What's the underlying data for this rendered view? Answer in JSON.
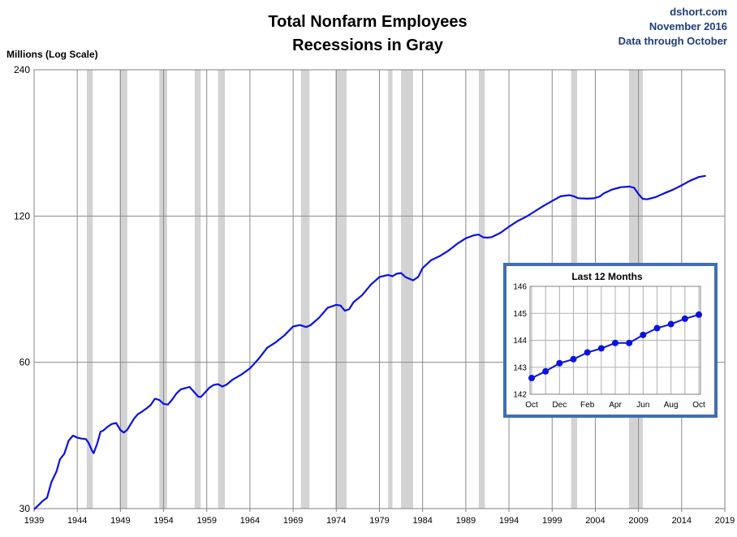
{
  "header": {
    "title_line1": "Total Nonfarm Employees",
    "title_line2": "Recessions in Gray",
    "source": "dshort.com",
    "date": "November 2016",
    "coverage": "Data through October"
  },
  "chart_data": [
    {
      "type": "line",
      "ylabel": "Millions (Log Scale)",
      "y_scale": "log",
      "ylim": [
        30,
        240
      ],
      "yticks": [
        "240",
        "120",
        "60",
        "30"
      ],
      "xlim": [
        1939,
        2019
      ],
      "xticks": [
        "1939",
        "1944",
        "1949",
        "1954",
        "1959",
        "1964",
        "1969",
        "1974",
        "1979",
        "1984",
        "1989",
        "1994",
        "1999",
        "2004",
        "2009",
        "2014",
        "2019"
      ],
      "grid": true,
      "line_color": "#0a12e0",
      "recession_color": "#d3d3d3",
      "recessions": [
        [
          1945.1,
          1945.8
        ],
        [
          1948.9,
          1949.8
        ],
        [
          1953.5,
          1954.4
        ],
        [
          1957.6,
          1958.3
        ],
        [
          1960.3,
          1961.1
        ],
        [
          1969.9,
          1970.9
        ],
        [
          1973.9,
          1975.2
        ],
        [
          1980.0,
          1980.5
        ],
        [
          1981.5,
          1982.9
        ],
        [
          1990.5,
          1991.2
        ],
        [
          2001.2,
          2001.9
        ],
        [
          2007.9,
          2009.5
        ]
      ],
      "series": [
        {
          "x": [
            1939.0,
            1939.6,
            1940.0,
            1940.5,
            1941.0,
            1941.6,
            1942.0,
            1942.5,
            1943.0,
            1943.5,
            1944.0,
            1944.5,
            1945.0,
            1945.3,
            1945.7,
            1945.9,
            1946.3,
            1946.7,
            1947.0,
            1947.5,
            1948.0,
            1948.5,
            1949.0,
            1949.4,
            1949.8,
            1950.2,
            1950.6,
            1951.0,
            1951.5,
            1952.0,
            1952.5,
            1953.0,
            1953.5,
            1954.0,
            1954.5,
            1955.0,
            1955.5,
            1956.0,
            1956.5,
            1957.0,
            1957.5,
            1958.0,
            1958.3,
            1958.8,
            1959.3,
            1959.8,
            1960.3,
            1960.8,
            1961.3,
            1962.0,
            1963.0,
            1964.0,
            1965.0,
            1966.0,
            1967.0,
            1968.0,
            1969.0,
            1969.8,
            1970.5,
            1971.0,
            1972.0,
            1973.0,
            1974.0,
            1974.5,
            1975.0,
            1975.5,
            1976.0,
            1977.0,
            1978.0,
            1979.0,
            1980.0,
            1980.5,
            1981.0,
            1981.5,
            1982.0,
            1982.9,
            1983.5,
            1984.0,
            1985.0,
            1986.0,
            1987.0,
            1988.0,
            1989.0,
            1990.0,
            1990.5,
            1991.0,
            1991.5,
            1992.0,
            1993.0,
            1994.0,
            1995.0,
            1996.0,
            1997.0,
            1998.0,
            1999.0,
            2000.0,
            2001.0,
            2001.5,
            2002.0,
            2003.0,
            2003.8,
            2004.5,
            2005.0,
            2006.0,
            2007.0,
            2008.0,
            2008.5,
            2009.0,
            2009.5,
            2010.0,
            2011.0,
            2012.0,
            2013.0,
            2014.0,
            2015.0,
            2016.0,
            2016.8
          ],
          "y": [
            29.9,
            30.6,
            31.1,
            31.6,
            34.0,
            35.8,
            37.9,
            38.9,
            41.4,
            42.4,
            42.0,
            41.8,
            41.7,
            41.0,
            39.5,
            39.0,
            40.8,
            43.2,
            43.4,
            44.2,
            44.8,
            45.0,
            43.5,
            43.0,
            43.6,
            44.8,
            46.0,
            46.9,
            47.5,
            48.2,
            49.0,
            50.5,
            50.2,
            49.3,
            49.1,
            50.3,
            51.8,
            52.8,
            53.1,
            53.4,
            52.2,
            51.0,
            50.9,
            52.0,
            53.2,
            53.9,
            54.1,
            53.5,
            54.0,
            55.3,
            56.6,
            58.3,
            61.0,
            64.3,
            66.0,
            68.2,
            71.1,
            71.6,
            70.9,
            71.5,
            74.1,
            77.7,
            78.8,
            78.5,
            76.6,
            77.2,
            79.8,
            82.5,
            86.7,
            89.9,
            90.8,
            90.2,
            91.3,
            91.6,
            89.9,
            88.5,
            90.0,
            93.8,
            97.4,
            99.3,
            101.9,
            105.2,
            108.0,
            109.6,
            109.9,
            108.5,
            108.3,
            108.6,
            110.8,
            114.1,
            117.2,
            119.6,
            122.7,
            125.9,
            128.9,
            131.8,
            132.5,
            131.8,
            130.6,
            130.3,
            130.5,
            131.6,
            133.7,
            136.2,
            137.6,
            138.0,
            137.2,
            133.2,
            130.2,
            129.9,
            131.3,
            133.7,
            136.0,
            138.8,
            141.9,
            144.4,
            145.2
          ]
        }
      ]
    },
    {
      "type": "line",
      "title": "Last 12 Months",
      "ylim": [
        142,
        146
      ],
      "yticks": [
        "146",
        "145",
        "144",
        "143",
        "142"
      ],
      "xticks": [
        "Oct",
        "Dec",
        "Feb",
        "Apr",
        "Jun",
        "Aug",
        "Oct"
      ],
      "grid": true,
      "line_color": "#0a12e0",
      "series": [
        {
          "x": [
            0,
            1,
            2,
            3,
            4,
            5,
            6,
            7,
            8,
            9,
            10,
            11,
            12
          ],
          "y": [
            142.6,
            142.85,
            143.15,
            143.3,
            143.55,
            143.7,
            143.9,
            143.9,
            144.2,
            144.45,
            144.6,
            144.8,
            144.95
          ]
        }
      ]
    }
  ]
}
